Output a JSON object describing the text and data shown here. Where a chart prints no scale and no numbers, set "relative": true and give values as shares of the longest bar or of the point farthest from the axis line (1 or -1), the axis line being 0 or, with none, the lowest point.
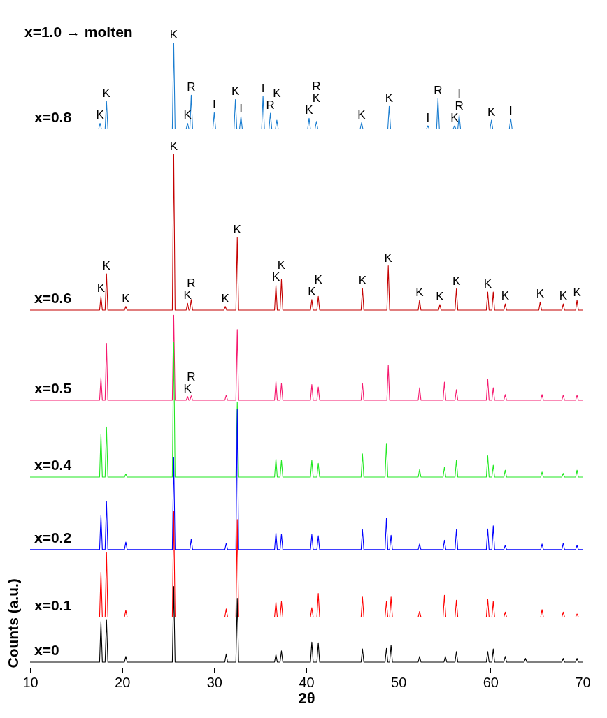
{
  "chart_data": {
    "type": "line",
    "relative": true,
    "xlabel": "2θ",
    "ylabel": "Counts (a.u.)",
    "xlim": [
      10,
      70
    ],
    "xticks": [
      10,
      20,
      30,
      40,
      50,
      60,
      70
    ],
    "series": [
      {
        "name": "x=0.8",
        "color": "#1a7dd0",
        "x": [
          10,
          17.45,
          17.6,
          17.75,
          18.15,
          18.3,
          18.45,
          25.45,
          25.6,
          25.75,
          26.95,
          27.1,
          27.25,
          27.35,
          27.5,
          27.65,
          29.85,
          30.0,
          30.15,
          32.15,
          32.3,
          32.45,
          32.75,
          32.9,
          33.05,
          35.15,
          35.3,
          35.45,
          35.95,
          36.1,
          36.25,
          36.65,
          36.8,
          36.95,
          40.15,
          40.3,
          40.45,
          40.95,
          41.1,
          41.25,
          45.85,
          46.0,
          46.15,
          48.85,
          49.0,
          49.15,
          53.05,
          53.2,
          53.35,
          54.15,
          54.3,
          54.45,
          55.95,
          56.1,
          56.25,
          56.45,
          56.6,
          56.75,
          59.95,
          60.1,
          60.25,
          62.05,
          62.2,
          62.35,
          70
        ],
        "values": [
          0.862,
          0.862,
          0.871,
          0.862,
          0.862,
          0.906,
          0.862,
          0.862,
          1.0,
          0.862,
          0.862,
          0.871,
          0.862,
          0.862,
          0.916,
          0.862,
          0.862,
          0.888,
          0.862,
          0.862,
          0.909,
          0.862,
          0.862,
          0.882,
          0.862,
          0.862,
          0.914,
          0.862,
          0.862,
          0.887,
          0.862,
          0.862,
          0.876,
          0.862,
          0.862,
          0.879,
          0.862,
          0.862,
          0.874,
          0.862,
          0.862,
          0.872,
          0.862,
          0.862,
          0.898,
          0.862,
          0.862,
          0.867,
          0.862,
          0.862,
          0.911,
          0.862,
          0.862,
          0.867,
          0.862,
          0.862,
          0.884,
          0.862,
          0.862,
          0.876,
          0.862,
          0.862,
          0.878,
          0.862,
          0.862
        ]
      },
      {
        "name": "x=0.6",
        "color": "#c40000",
        "x": [
          10,
          17.55,
          17.7,
          17.85,
          18.15,
          18.3,
          18.45,
          20.25,
          20.4,
          20.55,
          25.45,
          25.6,
          25.75,
          26.95,
          27.1,
          27.25,
          27.35,
          27.5,
          27.65,
          31.05,
          31.2,
          31.35,
          32.35,
          32.5,
          32.65,
          36.55,
          36.7,
          36.85,
          37.15,
          37.3,
          37.45,
          40.45,
          40.6,
          40.75,
          41.15,
          41.3,
          41.45,
          45.95,
          46.1,
          46.25,
          48.75,
          48.9,
          49.05,
          52.15,
          52.3,
          52.45,
          54.35,
          54.5,
          54.65,
          56.15,
          56.3,
          56.45,
          59.55,
          59.7,
          59.85,
          60.15,
          60.3,
          60.45,
          61.45,
          61.6,
          61.75,
          65.25,
          65.4,
          65.55,
          67.75,
          67.9,
          68.05,
          69.25,
          69.4,
          69.55,
          70
        ],
        "values": [
          0.572,
          0.572,
          0.594,
          0.572,
          0.572,
          0.63,
          0.572,
          0.572,
          0.578,
          0.572,
          0.572,
          0.821,
          0.572,
          0.572,
          0.583,
          0.572,
          0.572,
          0.589,
          0.572,
          0.572,
          0.578,
          0.572,
          0.572,
          0.688,
          0.572,
          0.572,
          0.612,
          0.572,
          0.572,
          0.621,
          0.572,
          0.572,
          0.589,
          0.572,
          0.572,
          0.594,
          0.572,
          0.572,
          0.607,
          0.572,
          0.572,
          0.643,
          0.572,
          0.572,
          0.588,
          0.572,
          0.572,
          0.581,
          0.572,
          0.572,
          0.606,
          0.572,
          0.572,
          0.601,
          0.572,
          0.572,
          0.601,
          0.572,
          0.572,
          0.582,
          0.572,
          0.572,
          0.585,
          0.572,
          0.572,
          0.582,
          0.572,
          0.572,
          0.588,
          0.572,
          0.572
        ]
      },
      {
        "name": "x=0.5",
        "color": "#f5186e",
        "x": [
          10,
          17.55,
          17.7,
          17.85,
          18.15,
          18.3,
          18.45,
          25.45,
          25.6,
          25.75,
          26.95,
          27.1,
          27.25,
          27.35,
          27.5,
          27.65,
          31.15,
          31.3,
          31.45,
          32.35,
          32.5,
          32.65,
          36.55,
          36.7,
          36.85,
          37.15,
          37.3,
          37.45,
          40.45,
          40.6,
          40.75,
          41.15,
          41.3,
          41.45,
          45.95,
          46.1,
          46.25,
          48.75,
          48.9,
          49.05,
          52.15,
          52.3,
          52.45,
          54.85,
          55.0,
          55.15,
          56.15,
          56.3,
          56.45,
          59.55,
          59.7,
          59.85,
          60.15,
          60.3,
          60.45,
          61.45,
          61.6,
          61.75,
          65.45,
          65.6,
          65.75,
          67.75,
          67.9,
          68.05,
          69.25,
          69.4,
          69.55,
          70
        ],
        "values": [
          0.428,
          0.428,
          0.464,
          0.428,
          0.428,
          0.519,
          0.428,
          0.428,
          0.564,
          0.428,
          0.428,
          0.434,
          0.428,
          0.428,
          0.435,
          0.428,
          0.428,
          0.436,
          0.428,
          0.428,
          0.541,
          0.428,
          0.428,
          0.458,
          0.428,
          0.428,
          0.455,
          0.428,
          0.428,
          0.453,
          0.428,
          0.428,
          0.449,
          0.428,
          0.428,
          0.455,
          0.428,
          0.428,
          0.484,
          0.428,
          0.428,
          0.448,
          0.428,
          0.428,
          0.457,
          0.428,
          0.428,
          0.445,
          0.428,
          0.428,
          0.462,
          0.428,
          0.428,
          0.448,
          0.428,
          0.428,
          0.437,
          0.428,
          0.428,
          0.437,
          0.428,
          0.428,
          0.436,
          0.428,
          0.428,
          0.436,
          0.428,
          0.428
        ]
      },
      {
        "name": "x=0.4",
        "color": "#22e822",
        "x": [
          10,
          17.55,
          17.7,
          17.85,
          18.15,
          18.3,
          18.45,
          20.25,
          20.4,
          20.55,
          25.45,
          25.6,
          25.75,
          32.35,
          32.5,
          32.65,
          36.55,
          36.7,
          36.85,
          37.15,
          37.3,
          37.45,
          40.45,
          40.6,
          40.75,
          41.15,
          41.3,
          41.45,
          45.95,
          46.1,
          46.25,
          48.55,
          48.7,
          48.85,
          52.15,
          52.3,
          52.45,
          54.85,
          55.0,
          55.15,
          56.15,
          56.3,
          56.45,
          59.55,
          59.7,
          59.85,
          60.15,
          60.3,
          60.45,
          61.45,
          61.6,
          61.75,
          65.45,
          65.6,
          65.75,
          67.75,
          67.9,
          68.05,
          69.25,
          69.4,
          69.55,
          70
        ],
        "values": [
          0.305,
          0.305,
          0.374,
          0.305,
          0.305,
          0.385,
          0.305,
          0.305,
          0.31,
          0.305,
          0.305,
          0.521,
          0.305,
          0.305,
          0.425,
          0.305,
          0.305,
          0.334,
          0.305,
          0.305,
          0.332,
          0.305,
          0.305,
          0.332,
          0.305,
          0.305,
          0.327,
          0.305,
          0.305,
          0.342,
          0.305,
          0.305,
          0.359,
          0.305,
          0.305,
          0.317,
          0.305,
          0.305,
          0.321,
          0.305,
          0.305,
          0.332,
          0.305,
          0.305,
          0.339,
          0.305,
          0.305,
          0.324,
          0.305,
          0.305,
          0.316,
          0.305,
          0.305,
          0.313,
          0.305,
          0.305,
          0.311,
          0.305,
          0.305,
          0.316,
          0.305,
          0.305
        ]
      },
      {
        "name": "x=0.2",
        "color": "#0000ff",
        "x": [
          10,
          17.55,
          17.7,
          17.85,
          18.15,
          18.3,
          18.45,
          20.25,
          20.4,
          20.55,
          25.45,
          25.6,
          25.75,
          27.35,
          27.5,
          27.65,
          31.15,
          31.3,
          31.45,
          32.35,
          32.5,
          32.65,
          36.55,
          36.7,
          36.85,
          37.15,
          37.3,
          37.45,
          40.45,
          40.6,
          40.75,
          41.15,
          41.3,
          41.45,
          45.95,
          46.1,
          46.25,
          48.55,
          48.7,
          48.85,
          49.05,
          49.2,
          49.35,
          52.15,
          52.3,
          52.45,
          54.85,
          55.0,
          55.15,
          56.15,
          56.3,
          56.45,
          59.55,
          59.7,
          59.85,
          60.15,
          60.3,
          60.45,
          61.45,
          61.6,
          61.75,
          65.45,
          65.6,
          65.75,
          67.75,
          67.9,
          68.05,
          69.25,
          69.4,
          69.55,
          70
        ],
        "values": [
          0.189,
          0.189,
          0.244,
          0.189,
          0.189,
          0.266,
          0.189,
          0.189,
          0.201,
          0.189,
          0.189,
          0.336,
          0.189,
          0.189,
          0.206,
          0.189,
          0.189,
          0.199,
          0.189,
          0.189,
          0.413,
          0.189,
          0.189,
          0.216,
          0.189,
          0.189,
          0.214,
          0.189,
          0.189,
          0.213,
          0.189,
          0.189,
          0.211,
          0.189,
          0.189,
          0.221,
          0.189,
          0.189,
          0.239,
          0.189,
          0.189,
          0.212,
          0.189,
          0.189,
          0.198,
          0.189,
          0.189,
          0.204,
          0.189,
          0.189,
          0.221,
          0.189,
          0.189,
          0.222,
          0.189,
          0.189,
          0.227,
          0.189,
          0.189,
          0.196,
          0.189,
          0.189,
          0.198,
          0.189,
          0.189,
          0.199,
          0.189,
          0.189,
          0.196,
          0.189,
          0.189
        ]
      },
      {
        "name": "x=0.1",
        "color": "#ff0000",
        "x": [
          10,
          17.55,
          17.7,
          17.85,
          18.15,
          18.3,
          18.45,
          20.25,
          20.4,
          20.55,
          25.45,
          25.6,
          25.75,
          31.15,
          31.3,
          31.45,
          32.35,
          32.5,
          32.65,
          36.55,
          36.7,
          36.85,
          37.15,
          37.3,
          37.45,
          40.45,
          40.6,
          40.75,
          41.15,
          41.3,
          41.45,
          45.95,
          46.1,
          46.25,
          48.55,
          48.7,
          48.85,
          49.05,
          49.2,
          49.35,
          52.15,
          52.3,
          52.45,
          54.85,
          55.0,
          55.15,
          56.15,
          56.3,
          56.45,
          59.55,
          59.7,
          59.85,
          60.15,
          60.3,
          60.45,
          61.45,
          61.6,
          61.75,
          65.45,
          65.6,
          65.75,
          67.75,
          67.9,
          68.05,
          69.25,
          69.4,
          69.55,
          70
        ],
        "values": [
          0.081,
          0.081,
          0.153,
          0.081,
          0.081,
          0.184,
          0.081,
          0.081,
          0.092,
          0.081,
          0.081,
          0.25,
          0.081,
          0.081,
          0.094,
          0.081,
          0.081,
          0.237,
          0.081,
          0.081,
          0.105,
          0.081,
          0.081,
          0.106,
          0.081,
          0.081,
          0.096,
          0.081,
          0.081,
          0.119,
          0.081,
          0.081,
          0.113,
          0.081,
          0.081,
          0.106,
          0.081,
          0.081,
          0.113,
          0.081,
          0.081,
          0.09,
          0.081,
          0.081,
          0.116,
          0.081,
          0.081,
          0.108,
          0.081,
          0.081,
          0.11,
          0.081,
          0.081,
          0.106,
          0.081,
          0.081,
          0.089,
          0.081,
          0.081,
          0.093,
          0.081,
          0.081,
          0.089,
          0.081,
          0.081,
          0.086,
          0.081,
          0.081
        ]
      },
      {
        "name": "x=0",
        "color": "#000000",
        "x": [
          10,
          17.55,
          17.7,
          17.85,
          18.15,
          18.3,
          18.45,
          20.25,
          20.4,
          20.55,
          25.45,
          25.6,
          25.75,
          31.15,
          31.3,
          31.45,
          32.35,
          32.5,
          32.65,
          36.55,
          36.7,
          36.85,
          37.15,
          37.3,
          37.45,
          40.45,
          40.6,
          40.75,
          41.15,
          41.3,
          41.45,
          45.95,
          46.1,
          46.25,
          48.55,
          48.7,
          48.85,
          49.05,
          49.2,
          49.35,
          52.15,
          52.3,
          52.45,
          54.95,
          55.1,
          55.25,
          56.15,
          56.3,
          56.45,
          59.55,
          59.7,
          59.85,
          60.15,
          60.3,
          60.45,
          61.45,
          61.6,
          61.75,
          63.65,
          63.8,
          63.95,
          67.75,
          67.9,
          68.05,
          69.25,
          69.4,
          69.55,
          70
        ],
        "values": [
          0.009,
          0.009,
          0.074,
          0.009,
          0.009,
          0.077,
          0.009,
          0.009,
          0.018,
          0.009,
          0.009,
          0.13,
          0.009,
          0.009,
          0.022,
          0.009,
          0.009,
          0.111,
          0.009,
          0.009,
          0.021,
          0.009,
          0.009,
          0.027,
          0.009,
          0.009,
          0.041,
          0.009,
          0.009,
          0.04,
          0.009,
          0.009,
          0.03,
          0.009,
          0.009,
          0.031,
          0.009,
          0.009,
          0.036,
          0.009,
          0.009,
          0.018,
          0.009,
          0.009,
          0.018,
          0.009,
          0.009,
          0.026,
          0.009,
          0.009,
          0.026,
          0.009,
          0.009,
          0.03,
          0.009,
          0.009,
          0.018,
          0.009,
          0.009,
          0.015,
          0.009,
          0.009,
          0.015,
          0.009,
          0.009,
          0.015,
          0.009,
          0.009
        ]
      }
    ],
    "annotations": [
      "x=1.0 → molten",
      {
        "text": "K",
        "x": 17.6,
        "y": 0.871
      },
      {
        "text": "K",
        "x": 18.3,
        "y": 0.906
      },
      {
        "text": "K",
        "x": 25.6,
        "y": 1.0
      },
      {
        "text": "K",
        "x": 27.1,
        "y": 0.871
      },
      {
        "text": "R",
        "x": 27.5,
        "y": 0.916
      },
      {
        "text": "I",
        "x": 30.0,
        "y": 0.888
      },
      {
        "text": "K",
        "x": 32.3,
        "y": 0.909
      },
      {
        "text": "I",
        "x": 32.9,
        "y": 0.882
      },
      {
        "text": "I",
        "x": 35.3,
        "y": 0.914
      },
      {
        "text": "R",
        "x": 36.1,
        "y": 0.887
      },
      {
        "text": "K",
        "x": 36.8,
        "y": 0.876
      },
      {
        "text": "K",
        "x": 40.3,
        "y": 0.879
      },
      {
        "text": "K",
        "x": 41.1,
        "y": 0.874
      },
      {
        "text": "R",
        "x": 41.1,
        "y": 0.874
      },
      {
        "text": "K",
        "x": 46.0,
        "y": 0.872
      },
      {
        "text": "K",
        "x": 49.0,
        "y": 0.898
      },
      {
        "text": "I",
        "x": 53.2,
        "y": 0.867
      },
      {
        "text": "R",
        "x": 54.3,
        "y": 0.911
      },
      {
        "text": "K",
        "x": 56.1,
        "y": 0.867
      },
      {
        "text": "R",
        "x": 56.6,
        "y": 0.884
      },
      {
        "text": "I",
        "x": 56.6,
        "y": 0.884
      },
      {
        "text": "K",
        "x": 60.1,
        "y": 0.876
      },
      {
        "text": "I",
        "x": 62.2,
        "y": 0.878
      },
      {
        "text": "K",
        "x": 17.7,
        "y": 0.594
      },
      {
        "text": "K",
        "x": 18.3,
        "y": 0.63
      },
      {
        "text": "K",
        "x": 20.4,
        "y": 0.578
      },
      {
        "text": "K",
        "x": 25.6,
        "y": 0.821
      },
      {
        "text": "K",
        "x": 27.1,
        "y": 0.583
      },
      {
        "text": "R",
        "x": 27.5,
        "y": 0.589
      },
      {
        "text": "K",
        "x": 31.2,
        "y": 0.578
      },
      {
        "text": "K",
        "x": 32.5,
        "y": 0.688
      },
      {
        "text": "K",
        "x": 36.7,
        "y": 0.612
      },
      {
        "text": "K",
        "x": 37.3,
        "y": 0.621
      },
      {
        "text": "K",
        "x": 40.6,
        "y": 0.589
      },
      {
        "text": "K",
        "x": 41.3,
        "y": 0.594
      },
      {
        "text": "K",
        "x": 46.1,
        "y": 0.607
      },
      {
        "text": "K",
        "x": 48.9,
        "y": 0.643
      },
      {
        "text": "K",
        "x": 52.3,
        "y": 0.588
      },
      {
        "text": "K",
        "x": 54.5,
        "y": 0.581
      },
      {
        "text": "K",
        "x": 56.3,
        "y": 0.606
      },
      {
        "text": "K",
        "x": 59.7,
        "y": 0.601
      },
      {
        "text": "K",
        "x": 61.6,
        "y": 0.582
      },
      {
        "text": "K",
        "x": 65.4,
        "y": 0.585
      },
      {
        "text": "K",
        "x": 67.9,
        "y": 0.582
      },
      {
        "text": "K",
        "x": 69.4,
        "y": 0.588
      },
      {
        "text": "K",
        "x": 27.1,
        "y": 0.434
      },
      {
        "text": "R",
        "x": 27.5,
        "y": 0.435
      }
    ]
  }
}
